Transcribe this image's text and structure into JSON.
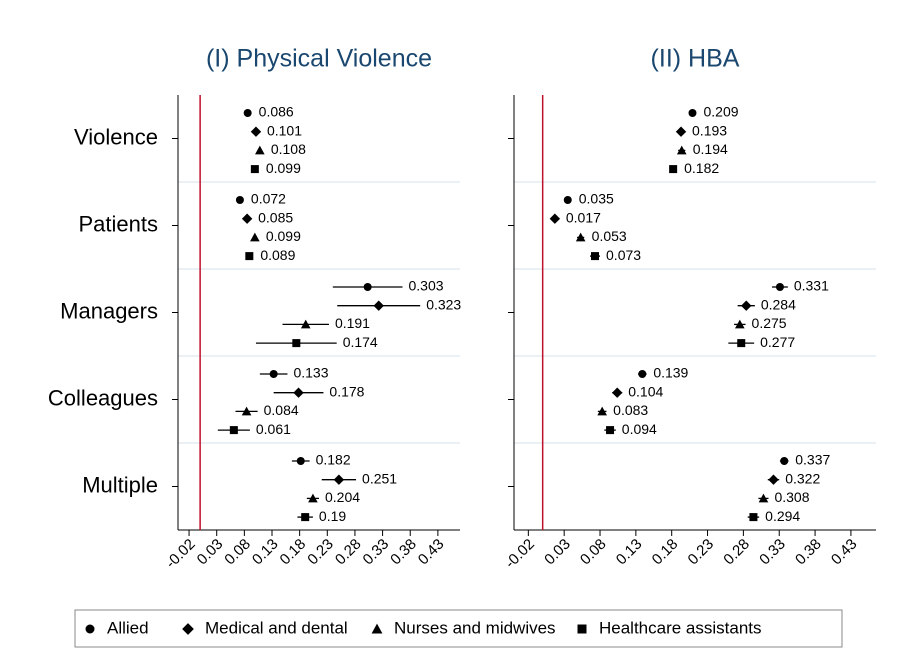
{
  "chart_data": [
    {
      "type": "dot",
      "title": "(I) Physical Violence",
      "categories": [
        "Violence",
        "Patients",
        "Managers",
        "Colleagues",
        "Multiple"
      ],
      "series": [
        {
          "values": [
            0.086,
            0.072,
            0.303,
            0.133,
            0.182
          ],
          "errors": [
            0.004,
            0.004,
            0.063,
            0.025,
            0.016
          ]
        },
        {
          "values": [
            0.101,
            0.085,
            0.323,
            0.178,
            0.251
          ],
          "errors": [
            0.004,
            0.004,
            0.075,
            0.045,
            0.031
          ]
        },
        {
          "values": [
            0.108,
            0.099,
            0.191,
            0.084,
            0.204
          ],
          "errors": [
            0.004,
            0.004,
            0.042,
            0.02,
            0.011
          ]
        },
        {
          "values": [
            0.099,
            0.089,
            0.174,
            0.061,
            0.19
          ],
          "errors": [
            0.004,
            0.004,
            0.073,
            0.029,
            0.014
          ]
        }
      ],
      "xlim": [
        -0.04,
        0.47
      ],
      "xticks": [
        -0.02,
        0.03,
        0.08,
        0.13,
        0.18,
        0.23,
        0.28,
        0.33,
        0.38,
        0.43
      ],
      "refline": 0,
      "refline_color": "#c0102a",
      "grid": true
    },
    {
      "type": "dot",
      "title": "(II) HBA",
      "series": [
        {
          "values": [
            0.209,
            0.035,
            0.331,
            0.139,
            0.337
          ],
          "errors": [
            0.004,
            0.005,
            0.011,
            0.006,
            0.006
          ]
        },
        {
          "values": [
            0.193,
            0.017,
            0.284,
            0.104,
            0.322
          ],
          "errors": [
            0.005,
            0.005,
            0.012,
            0.007,
            0.008
          ]
        },
        {
          "values": [
            0.194,
            0.053,
            0.275,
            0.083,
            0.308
          ],
          "errors": [
            0.005,
            0.005,
            0.008,
            0.006,
            0.007
          ]
        },
        {
          "values": [
            0.182,
            0.073,
            0.277,
            0.094,
            0.294
          ],
          "errors": [
            0.005,
            0.007,
            0.018,
            0.008,
            0.008
          ]
        }
      ],
      "xlim": [
        -0.04,
        0.465
      ],
      "xticks": [
        -0.02,
        0.03,
        0.08,
        0.13,
        0.18,
        0.23,
        0.28,
        0.33,
        0.38,
        0.43
      ],
      "refline": 0,
      "refline_color": "#c0102a",
      "grid": true
    }
  ],
  "legend": [
    {
      "name": "Allied",
      "marker": "circle"
    },
    {
      "name": "Medical and dental",
      "marker": "diamond"
    },
    {
      "name": "Nurses and midwives",
      "marker": "triangle"
    },
    {
      "name": "Healthcare assistants",
      "marker": "square"
    }
  ],
  "title_color": "#1a476f",
  "mark_color": "#000000"
}
